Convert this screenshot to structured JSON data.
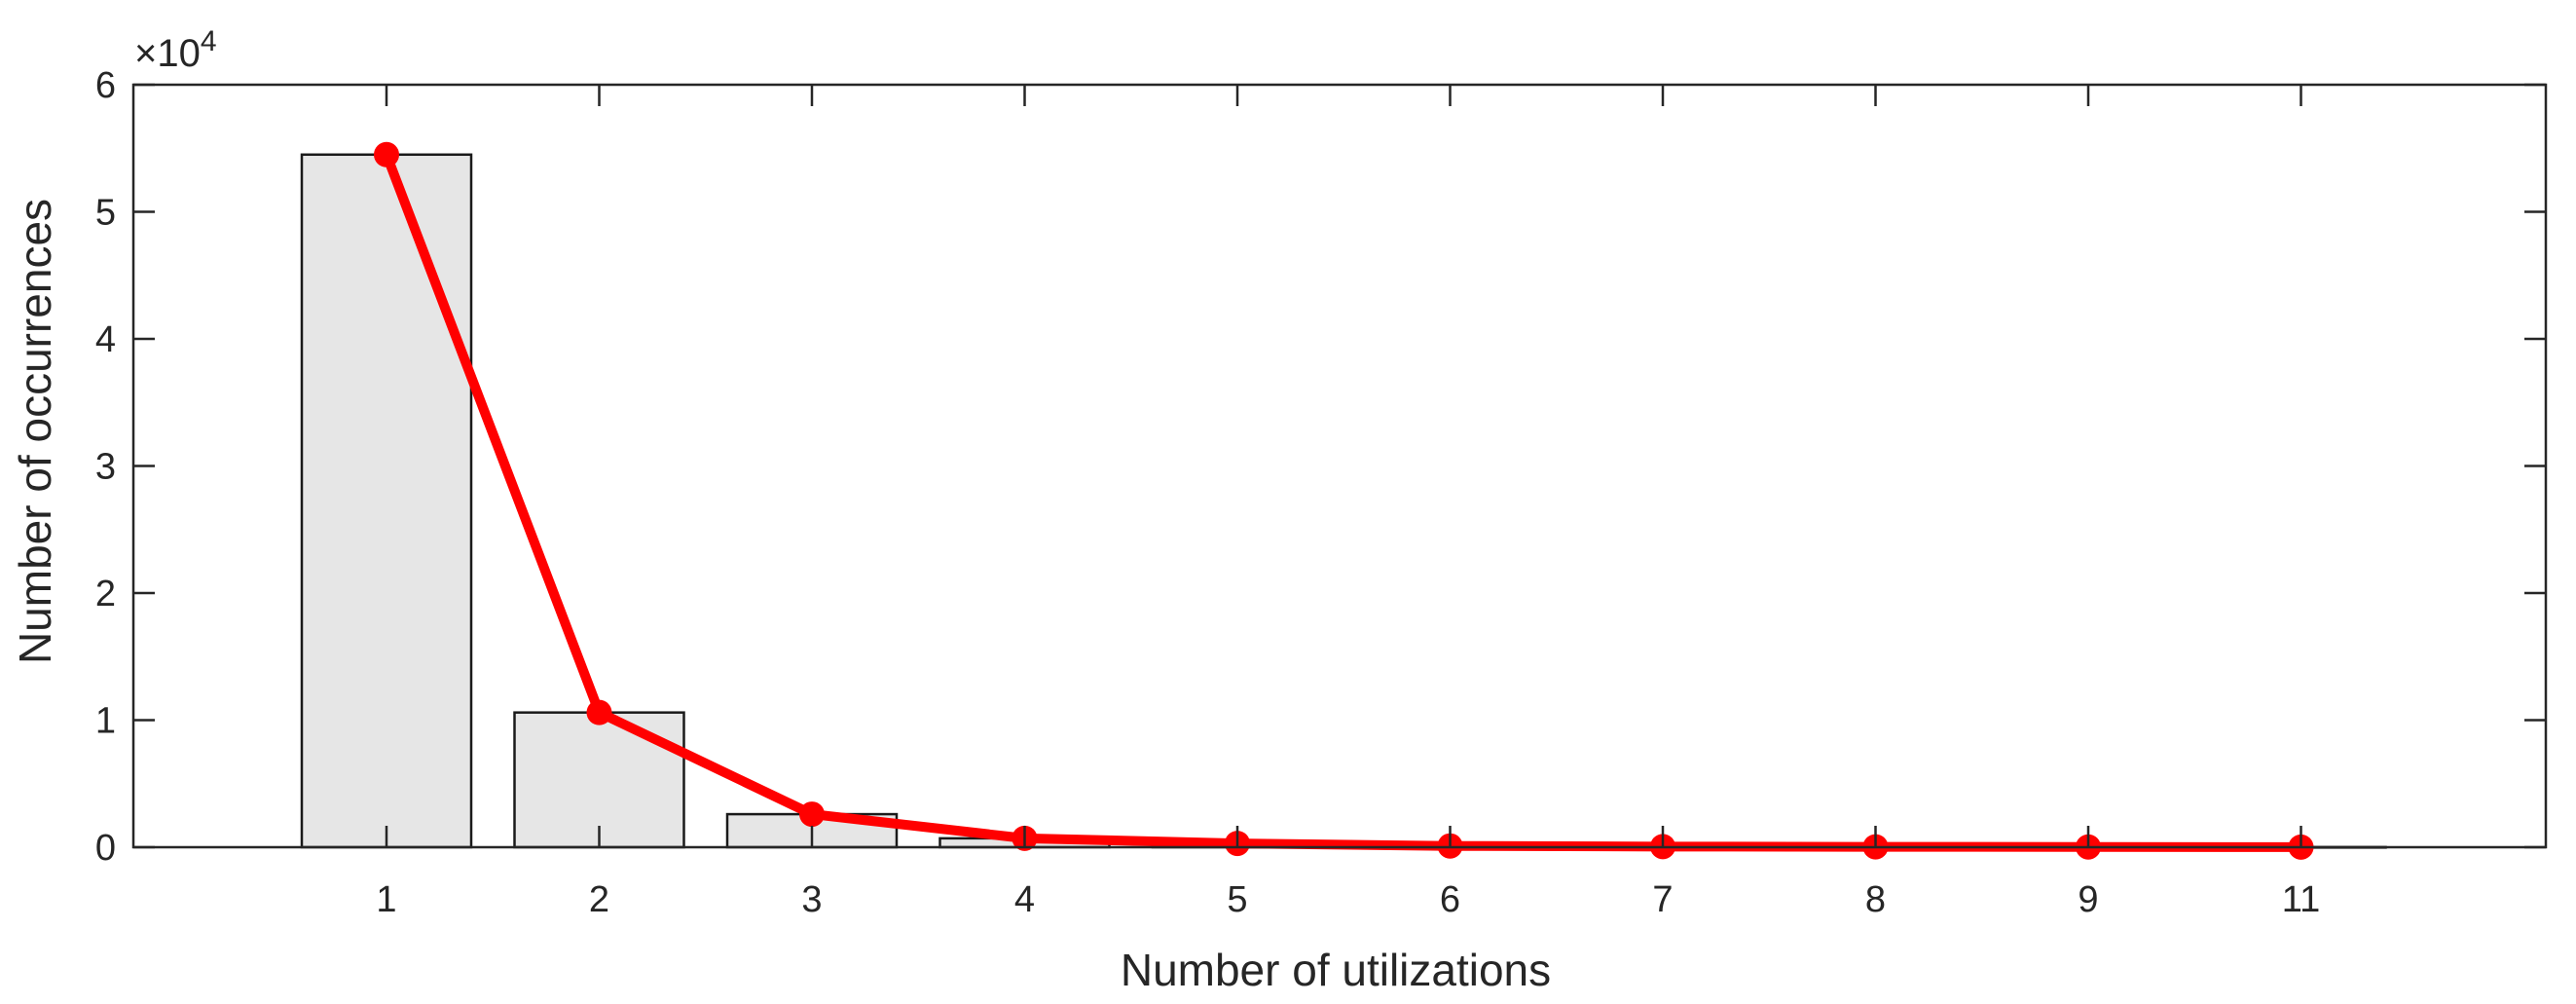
{
  "chart_data": {
    "type": "bar",
    "title": "",
    "xlabel": "Number of utilizations",
    "ylabel": "Number of occurrences",
    "y_scale_exponent": {
      "base": "×10",
      "power": "4"
    },
    "categories": [
      "1",
      "2",
      "3",
      "4",
      "5",
      "6",
      "7",
      "8",
      "9",
      "11"
    ],
    "y_tick_labels": [
      "0",
      "1",
      "2",
      "3",
      "4",
      "5",
      "6"
    ],
    "ylim": [
      0,
      60000
    ],
    "grid": false,
    "series": [
      {
        "type": "bar",
        "values": [
          54500,
          10600,
          2600,
          700,
          200,
          100,
          50,
          30,
          20,
          10
        ]
      },
      {
        "type": "line",
        "values": [
          54500,
          10600,
          2600,
          700,
          300,
          100,
          50,
          30,
          20,
          10
        ]
      }
    ],
    "colors": {
      "bar_fill": "#e6e6e6",
      "bar_stroke": "#1a1a1a",
      "line": "#ff0000",
      "axis": "#262626"
    }
  }
}
